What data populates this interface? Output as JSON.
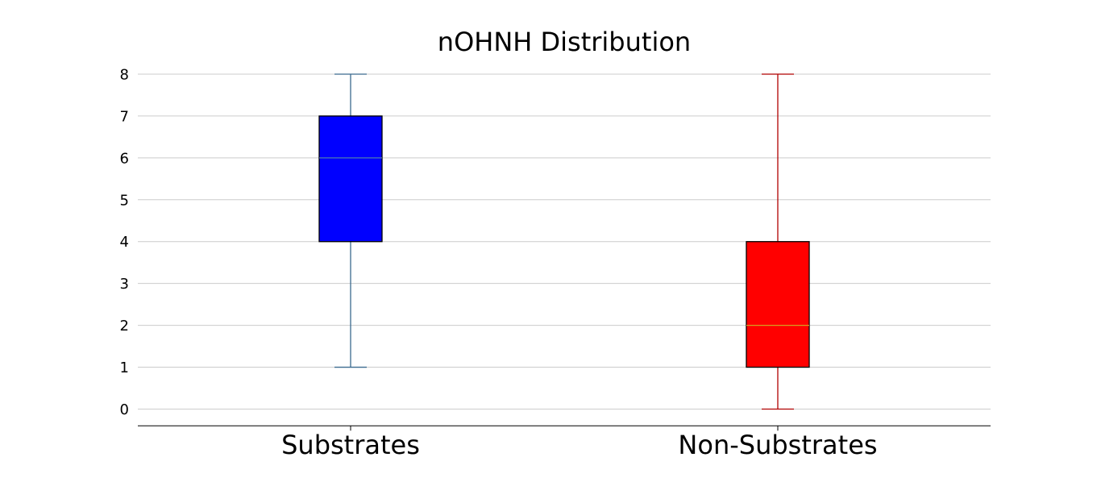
{
  "chart_data": {
    "type": "box",
    "title": "nOHNH Distribution",
    "xlabel": "",
    "ylabel": "",
    "categories": [
      "Substrates",
      "Non-Substrates"
    ],
    "yticks": [
      "0",
      "1",
      "2",
      "3",
      "4",
      "5",
      "6",
      "7",
      "8"
    ],
    "ylim": [
      -0.4,
      8.2
    ],
    "grid": "horizontal",
    "series": [
      {
        "category": "Substrates",
        "whisker_low": 1,
        "q1": 4,
        "median": 6,
        "q3": 7,
        "whisker_high": 8,
        "box_color": "#0000ff",
        "whisker_color": "#3b6a8f",
        "median_color": "#4a7ab0"
      },
      {
        "category": "Non-Substrates",
        "whisker_low": 0,
        "q1": 1,
        "median": 2,
        "q3": 4,
        "whisker_high": 8,
        "box_color": "#ff0000",
        "whisker_color": "#b00000",
        "median_color": "#d4a020"
      }
    ]
  }
}
